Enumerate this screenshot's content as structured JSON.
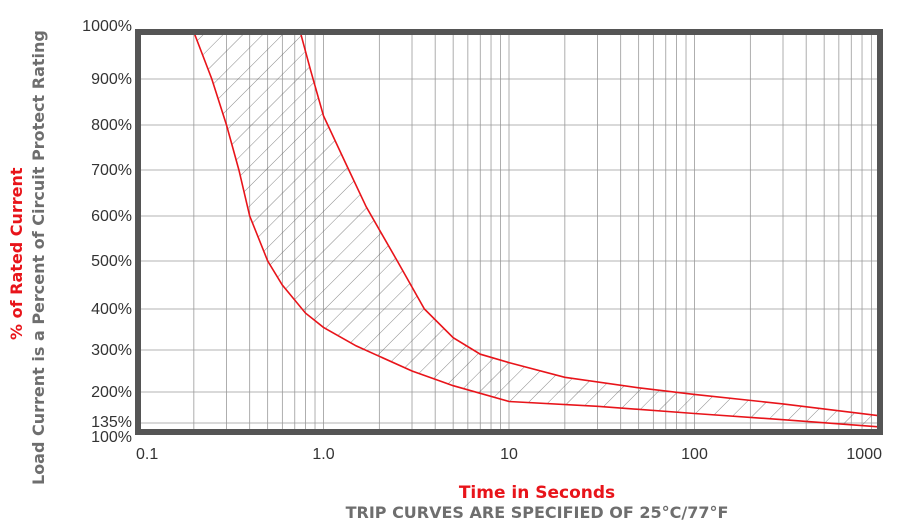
{
  "chart_data": {
    "type": "line",
    "xscale": "log",
    "xlim": [
      0.1,
      1000
    ],
    "ylim": [
      100,
      1000
    ],
    "grid": true,
    "xlabel": "Time in Seconds",
    "ylabel_line1": "% of Rated Current",
    "ylabel_line2": "Load Current is a Percent of Circuit Protect Rating",
    "footnote": "TRIP CURVES ARE SPECIFIED OF 25°C/77°F",
    "x_tick_labels": [
      {
        "value": 0.1,
        "label": "0.1"
      },
      {
        "value": 1,
        "label": "1.0"
      },
      {
        "value": 10,
        "label": "10"
      },
      {
        "value": 100,
        "label": "100"
      },
      {
        "value": 1000,
        "label": "1000"
      }
    ],
    "y_tick_labels": [
      {
        "value": 1000,
        "label": "1000%"
      },
      {
        "value": 900,
        "label": "900%"
      },
      {
        "value": 800,
        "label": "800%"
      },
      {
        "value": 700,
        "label": "700%"
      },
      {
        "value": 600,
        "label": "600%"
      },
      {
        "value": 500,
        "label": "500%"
      },
      {
        "value": 400,
        "label": "400%"
      },
      {
        "value": 300,
        "label": "300%"
      },
      {
        "value": 200,
        "label": "200%"
      },
      {
        "value": 135,
        "label": "135%"
      },
      {
        "value": 100,
        "label": "100%"
      }
    ],
    "series": [
      {
        "x": [
          0.2,
          0.25,
          0.3,
          0.35,
          0.4,
          0.5,
          0.6,
          0.8,
          1.0,
          1.5,
          2,
          3,
          5,
          10,
          30,
          100,
          300,
          1000
        ],
        "y": [
          1000,
          900,
          800,
          700,
          600,
          500,
          450,
          390,
          355,
          310,
          285,
          250,
          215,
          180,
          170,
          155,
          142,
          120
        ]
      },
      {
        "x": [
          0.75,
          0.85,
          1.0,
          1.3,
          1.7,
          2.5,
          3.5,
          5,
          7,
          10,
          20,
          50,
          100,
          300,
          1000
        ],
        "y": [
          1000,
          920,
          820,
          720,
          620,
          500,
          400,
          330,
          290,
          270,
          235,
          210,
          195,
          175,
          150
        ]
      }
    ],
    "colors": {
      "curve": "#e8141a",
      "frame": "#555555",
      "grid": "#9a9a9a",
      "hatch": "#555555"
    }
  }
}
